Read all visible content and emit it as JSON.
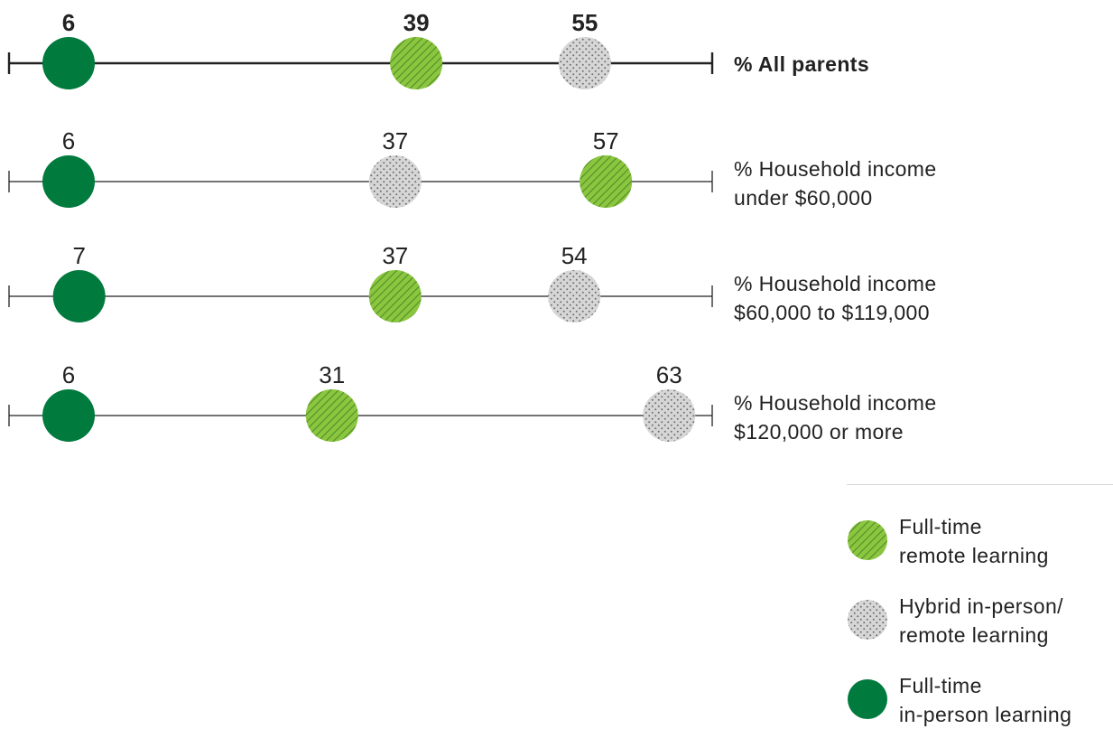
{
  "chart_data": {
    "type": "scatter",
    "subtype": "dot-plot",
    "x_range": [
      0,
      100
    ],
    "rows": [
      {
        "label_lines": [
          "% All parents"
        ],
        "emphasis": true,
        "points": [
          {
            "series": "in_person",
            "value": 6,
            "label": "6"
          },
          {
            "series": "remote",
            "value": 39,
            "label": "39"
          },
          {
            "series": "hybrid",
            "value": 55,
            "label": "55"
          }
        ]
      },
      {
        "label_lines": [
          "% Household income",
          "under $60,000"
        ],
        "emphasis": false,
        "points": [
          {
            "series": "in_person",
            "value": 6,
            "label": "6"
          },
          {
            "series": "hybrid",
            "value": 37,
            "label": "37"
          },
          {
            "series": "remote",
            "value": 57,
            "label": "57"
          }
        ]
      },
      {
        "label_lines": [
          "% Household income",
          "$60,000 to $119,000"
        ],
        "emphasis": false,
        "points": [
          {
            "series": "in_person",
            "value": 7,
            "label": "7"
          },
          {
            "series": "remote",
            "value": 37,
            "label": "37"
          },
          {
            "series": "hybrid",
            "value": 54,
            "label": "54"
          }
        ]
      },
      {
        "label_lines": [
          "% Household income",
          "$120,000 or more"
        ],
        "emphasis": false,
        "points": [
          {
            "series": "in_person",
            "value": 6,
            "label": "6"
          },
          {
            "series": "remote",
            "value": 31,
            "label": "31"
          },
          {
            "series": "hybrid",
            "value": 63,
            "label": "63"
          }
        ]
      }
    ],
    "series": [
      {
        "key": "remote",
        "name_lines": [
          "Full-time",
          "remote learning"
        ],
        "style": "hatched-green",
        "color": "#7DC242"
      },
      {
        "key": "hybrid",
        "name_lines": [
          "Hybrid in-person/",
          "remote learning"
        ],
        "style": "dotted-gray",
        "color": "#D9D9D9"
      },
      {
        "key": "in_person",
        "name_lines": [
          "Full-time",
          "in-person learning"
        ],
        "style": "solid-dark-green",
        "color": "#007A3D"
      }
    ],
    "legend_position": "bottom-right",
    "grid": false
  }
}
